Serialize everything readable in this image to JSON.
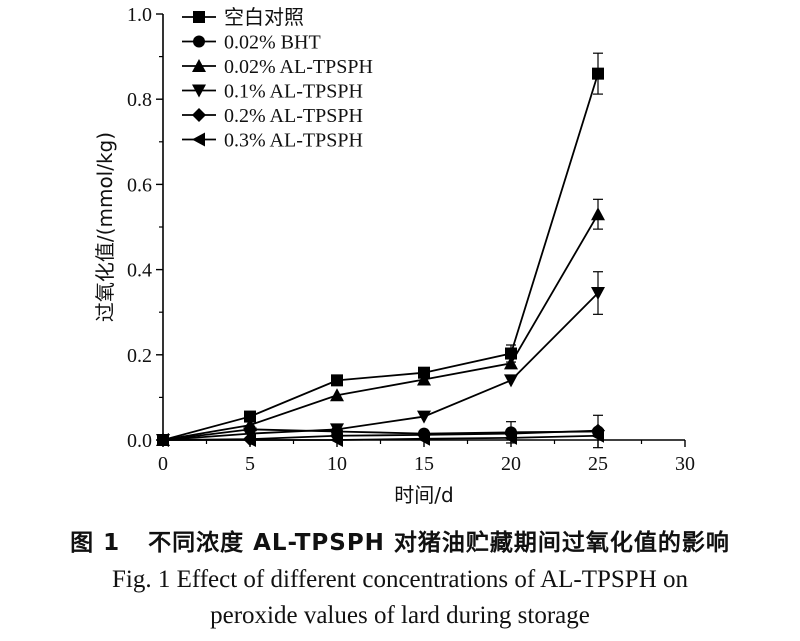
{
  "chart_data": {
    "type": "line",
    "title": "",
    "xlabel": "时间/d",
    "ylabel": "过氧化值/(mmol/kg)",
    "xlim": [
      0,
      30
    ],
    "ylim": [
      0,
      1.0
    ],
    "xticks": [
      "0",
      "5",
      "10",
      "15",
      "20",
      "25",
      "30"
    ],
    "yticks": [
      "0.0",
      "0.2",
      "0.4",
      "0.6",
      "0.8",
      "1.0"
    ],
    "grid": false,
    "legend_position": "top-left",
    "x": [
      0,
      5,
      10,
      15,
      20,
      25
    ],
    "series": [
      {
        "name": "空白对照",
        "marker": "square",
        "values": [
          0.0,
          0.055,
          0.14,
          0.158,
          0.203,
          0.86
        ],
        "errors": [
          0,
          0,
          0,
          0.008,
          0.02,
          0.048
        ]
      },
      {
        "name": "0.02% BHT",
        "marker": "circle",
        "values": [
          0.0,
          0.025,
          0.02,
          0.015,
          0.018,
          0.02
        ],
        "errors": [
          0,
          0,
          0,
          0,
          0.025,
          0.038
        ]
      },
      {
        "name": "0.02% AL-TPSPH",
        "marker": "triangle-up",
        "values": [
          0.0,
          0.035,
          0.105,
          0.142,
          0.18,
          0.53
        ],
        "errors": [
          0,
          0,
          0,
          0,
          0.012,
          0.035
        ]
      },
      {
        "name": "0.1% AL-TPSPH",
        "marker": "triangle-down",
        "values": [
          0.0,
          0.015,
          0.025,
          0.055,
          0.14,
          0.345
        ],
        "errors": [
          0,
          0,
          0,
          0,
          0,
          0.05
        ]
      },
      {
        "name": "0.2% AL-TPSPH",
        "marker": "diamond",
        "values": [
          0.0,
          0.002,
          0.01,
          0.012,
          0.015,
          0.022
        ],
        "errors": [
          0,
          0,
          0,
          0,
          0,
          0
        ]
      },
      {
        "name": "0.3% AL-TPSPH",
        "marker": "triangle-left",
        "values": [
          0.0,
          0.0,
          0.0,
          0.003,
          0.005,
          0.01
        ],
        "errors": [
          0,
          0,
          0,
          0,
          0,
          0
        ]
      }
    ]
  },
  "caption": {
    "cn_fig_no": "图 1",
    "cn_text": "不同浓度 AL-TPSPH 对猪油贮藏期间过氧化值的影响",
    "en_line1": "Fig. 1 Effect of different concentrations of AL-TPSPH on",
    "en_line2": "peroxide values of lard during storage"
  }
}
